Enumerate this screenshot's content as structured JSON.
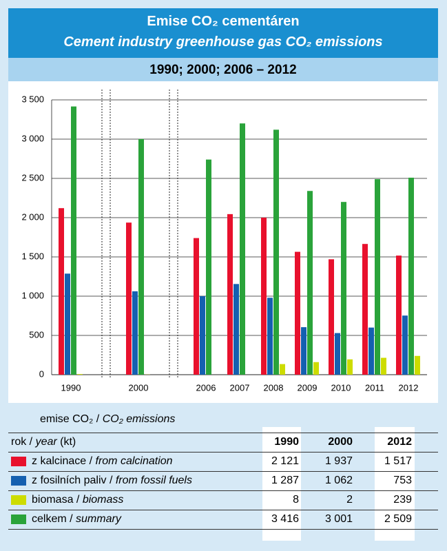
{
  "chart_data": {
    "type": "bar",
    "title": "Emise CO₂ cementáren",
    "subtitle": "Cement industry greenhouse gas CO₂ emissions",
    "period": "1990; 2000; 2006 – 2012",
    "categories": [
      "1990",
      null,
      "2000",
      null,
      "2006",
      "2007",
      "2008",
      "2009",
      "2010",
      "2011",
      "2012"
    ],
    "series": [
      {
        "name": "z kalcinace / from calcination",
        "color": "#e8112d",
        "values": [
          2121,
          null,
          1937,
          null,
          1740,
          2045,
          2000,
          1565,
          1470,
          1665,
          1517
        ]
      },
      {
        "name": "z fosilních paliv / from fossil fuels",
        "color": "#1560b0",
        "values": [
          1287,
          null,
          1062,
          null,
          1000,
          1155,
          980,
          605,
          530,
          600,
          753
        ]
      },
      {
        "name": "celkem / summary",
        "color": "#2aa33a",
        "values": [
          3416,
          null,
          3001,
          null,
          2740,
          3200,
          3120,
          2340,
          2200,
          2490,
          2509
        ]
      },
      {
        "name": "biomasa / biomass",
        "color": "#cddc00",
        "values": [
          8,
          null,
          2,
          null,
          0,
          0,
          135,
          160,
          195,
          215,
          239
        ]
      }
    ],
    "ylim": [
      0,
      3500
    ],
    "yticks": [
      0,
      500,
      {
        "value": 1000,
        "label": "1 000"
      },
      {
        "value": 1500,
        "label": "1 500"
      },
      {
        "value": 2000,
        "label": "2 000"
      },
      {
        "value": 2500,
        "label": "2 500"
      },
      {
        "value": 3000,
        "label": "3 000"
      },
      {
        "value": 3500,
        "label": "3 500"
      }
    ],
    "grid": true
  },
  "table": {
    "title_cz": "emise CO₂ /",
    "title_en": "CO₂ emissions",
    "header": {
      "cz": "rok /",
      "en": "year",
      "unit": "(kt)",
      "columns": [
        "1990",
        "2000",
        "2012"
      ]
    },
    "rows": [
      {
        "color": "#e8112d",
        "cz": "z kalcinace /",
        "en": "from calcination",
        "cells": [
          "2 121",
          "1 937",
          "1 517"
        ]
      },
      {
        "color": "#1560b0",
        "cz": "z fosilních paliv /",
        "en": "from fossil fuels",
        "cells": [
          "1 287",
          "1 062",
          "753"
        ]
      },
      {
        "color": "#cddc00",
        "cz": "biomasa /",
        "en": "biomass",
        "cells": [
          "8",
          "2",
          "239"
        ]
      },
      {
        "color": "#2aa33a",
        "cz": "celkem /",
        "en": "summary",
        "cells": [
          "3 416",
          "3 001",
          "2 509"
        ]
      }
    ]
  }
}
